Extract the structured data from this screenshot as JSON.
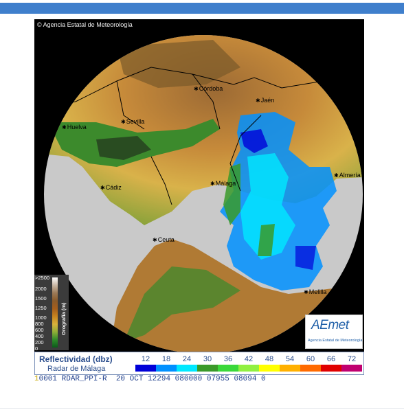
{
  "radar": {
    "copyright": "Agencia Estatal de Meteorología",
    "cities": [
      {
        "id": "cordoba",
        "name": "Córdoba"
      },
      {
        "id": "jaen",
        "name": "Jaén"
      },
      {
        "id": "huelva",
        "name": "Huelva"
      },
      {
        "id": "sevilla",
        "name": "Sevilla"
      },
      {
        "id": "cadiz",
        "name": "Cádiz"
      },
      {
        "id": "malaga",
        "name": "Málaga"
      },
      {
        "id": "almeria",
        "name": "Almería"
      },
      {
        "id": "ceuta",
        "name": "Ceuta"
      },
      {
        "id": "melilla",
        "name": "Melilla"
      }
    ],
    "orography": {
      "title": "Orografía (m)",
      "values": [
        ">2500",
        "2000",
        "1500",
        "1250",
        "1000",
        "800",
        "600",
        "400",
        "200",
        "0"
      ],
      "colors": [
        "#ffffff",
        "#c9b7a5",
        "#9c7a57",
        "#8a5a2a",
        "#a55e1c",
        "#c7841f",
        "#d8b23c",
        "#8fae38",
        "#2f8a2a",
        "#0b5a1a"
      ]
    },
    "logo": {
      "text": "AEmet",
      "subtitle": "Agencia Estatal de Meteorología"
    }
  },
  "legend": {
    "title": "Reflectividad (dbz)",
    "subtitle": "Radar de Málaga",
    "scale": [
      {
        "value": "12",
        "color": "#0000d8"
      },
      {
        "value": "18",
        "color": "#0090ff"
      },
      {
        "value": "24",
        "color": "#00e8ff"
      },
      {
        "value": "30",
        "color": "#3a9a2a"
      },
      {
        "value": "36",
        "color": "#3ad83a"
      },
      {
        "value": "42",
        "color": "#90f040"
      },
      {
        "value": "48",
        "color": "#ffff00"
      },
      {
        "value": "54",
        "color": "#ffb000"
      },
      {
        "value": "60",
        "color": "#ff6a00"
      },
      {
        "value": "66",
        "color": "#e00000"
      },
      {
        "value": "72",
        "color": "#c00070"
      }
    ]
  },
  "status": {
    "lead": "1",
    "text": "0001 RDAR_PPI-R  20 OCT 12294 080000 07955 08094 0"
  }
}
